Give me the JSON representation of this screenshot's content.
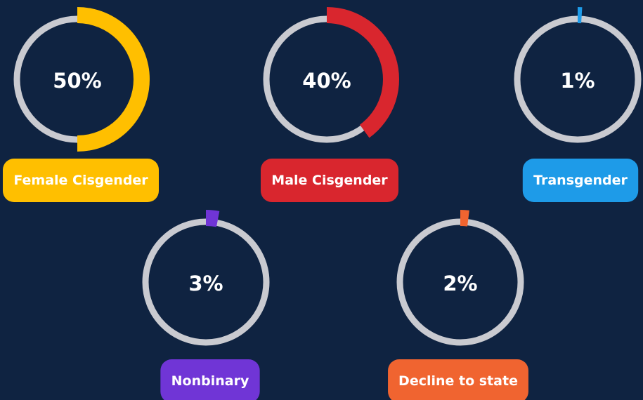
{
  "chart_data": [
    {
      "type": "donut",
      "categories": [
        "Female Cisgender"
      ],
      "values": [
        50
      ],
      "value_labels": [
        "50%"
      ],
      "color": "#ffbf00"
    },
    {
      "type": "donut",
      "categories": [
        "Male Cisgender"
      ],
      "values": [
        40
      ],
      "value_labels": [
        "40%"
      ],
      "color": "#d9262e"
    },
    {
      "type": "donut",
      "categories": [
        "Transgender"
      ],
      "values": [
        1
      ],
      "value_labels": [
        "1%"
      ],
      "color": "#1e9be8"
    },
    {
      "type": "donut",
      "categories": [
        "Nonbinary"
      ],
      "values": [
        3
      ],
      "value_labels": [
        "3%"
      ],
      "color": "#7035d6"
    },
    {
      "type": "donut",
      "categories": [
        "Decline to state"
      ],
      "values": [
        2
      ],
      "value_labels": [
        "2%"
      ],
      "color": "#f06430"
    }
  ]
}
